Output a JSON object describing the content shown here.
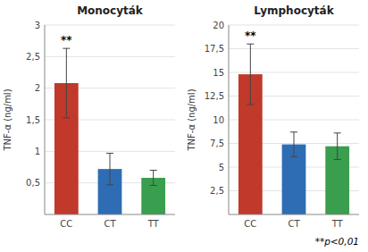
{
  "chart_data": [
    {
      "type": "bar",
      "title": "Monocyták",
      "y_label": "TNF-α (ng/ml)",
      "categories": [
        "CC",
        "CT",
        "TT"
      ],
      "values": [
        2.08,
        0.72,
        0.58
      ],
      "errors": [
        0.55,
        0.25,
        0.12
      ],
      "colors": [
        "#c0392b",
        "#2e6db4",
        "#3a9e4f"
      ],
      "ylim": [
        0,
        3.0
      ],
      "yticks": [
        {
          "value": 0.5,
          "label": "0,5"
        },
        1,
        {
          "value": 1.5,
          "label": "1,5"
        },
        2,
        {
          "value": 2.5,
          "label": "2,5"
        },
        3
      ],
      "grid": true,
      "annotations": [
        {
          "text": "**",
          "category": "CC"
        }
      ]
    },
    {
      "type": "bar",
      "title": "Lymphocyták",
      "y_label": "TNF-α (ng/ml)",
      "categories": [
        "CC",
        "CT",
        "TT"
      ],
      "values": [
        14.8,
        7.4,
        7.2
      ],
      "errors": [
        3.2,
        1.3,
        1.4
      ],
      "colors": [
        "#c0392b",
        "#2e6db4",
        "#3a9e4f"
      ],
      "ylim": [
        0,
        20.0
      ],
      "yticks": [
        {
          "value": 2.5,
          "label": "2,5"
        },
        5,
        {
          "value": 7.5,
          "label": "7,5"
        },
        10,
        {
          "value": 12.5,
          "label": "12,5"
        },
        15,
        {
          "value": 17.5,
          "label": "17,5"
        },
        20
      ],
      "grid": true,
      "annotations": [
        {
          "text": "**",
          "category": "CC"
        },
        {
          "text": "**p<0,01"
        }
      ]
    }
  ]
}
